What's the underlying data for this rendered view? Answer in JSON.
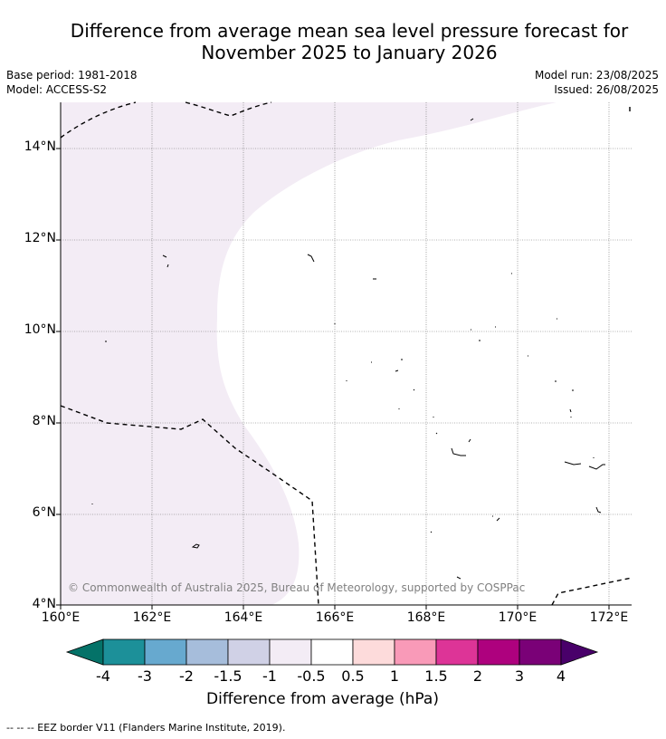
{
  "header": {
    "title_line1": "Difference from average mean sea level pressure forecast for",
    "title_line2": "November 2025 to January 2026",
    "base_period": "Base period: 1981-2018",
    "model": "Model: ACCESS-S2",
    "model_run": "Model run: 23/08/2025",
    "issued": "Issued: 26/08/2025"
  },
  "map": {
    "lat_labels": [
      "14°N",
      "12°N",
      "10°N",
      "8°N",
      "6°N",
      "4°N"
    ],
    "lon_labels": [
      "160°E",
      "162°E",
      "164°E",
      "166°E",
      "168°E",
      "170°E",
      "172°E"
    ],
    "copyright": "© Commonwealth of Australia 2025, Bureau of Meteorology, supported by COSPPac",
    "region_fill_color": "#f3ecf5",
    "border_style": "dashed"
  },
  "colorbar": {
    "label": "Difference from average (hPa)",
    "ticks": [
      "-4",
      "-3",
      "-2",
      "-1.5",
      "-1",
      "-0.5",
      "0.5",
      "1",
      "1.5",
      "2",
      "3",
      "4"
    ],
    "colors": [
      "#047268",
      "#1c9099",
      "#67a9cf",
      "#a6bddb",
      "#d0d1e6",
      "#f3ecf5",
      "#ffffff",
      "#fddbdb",
      "#f99ab8",
      "#dd3497",
      "#ae017e",
      "#7a0177",
      "#49006a"
    ]
  },
  "footnote": "--  --  -- EEZ border V11 (Flanders Marine Institute, 2019)."
}
